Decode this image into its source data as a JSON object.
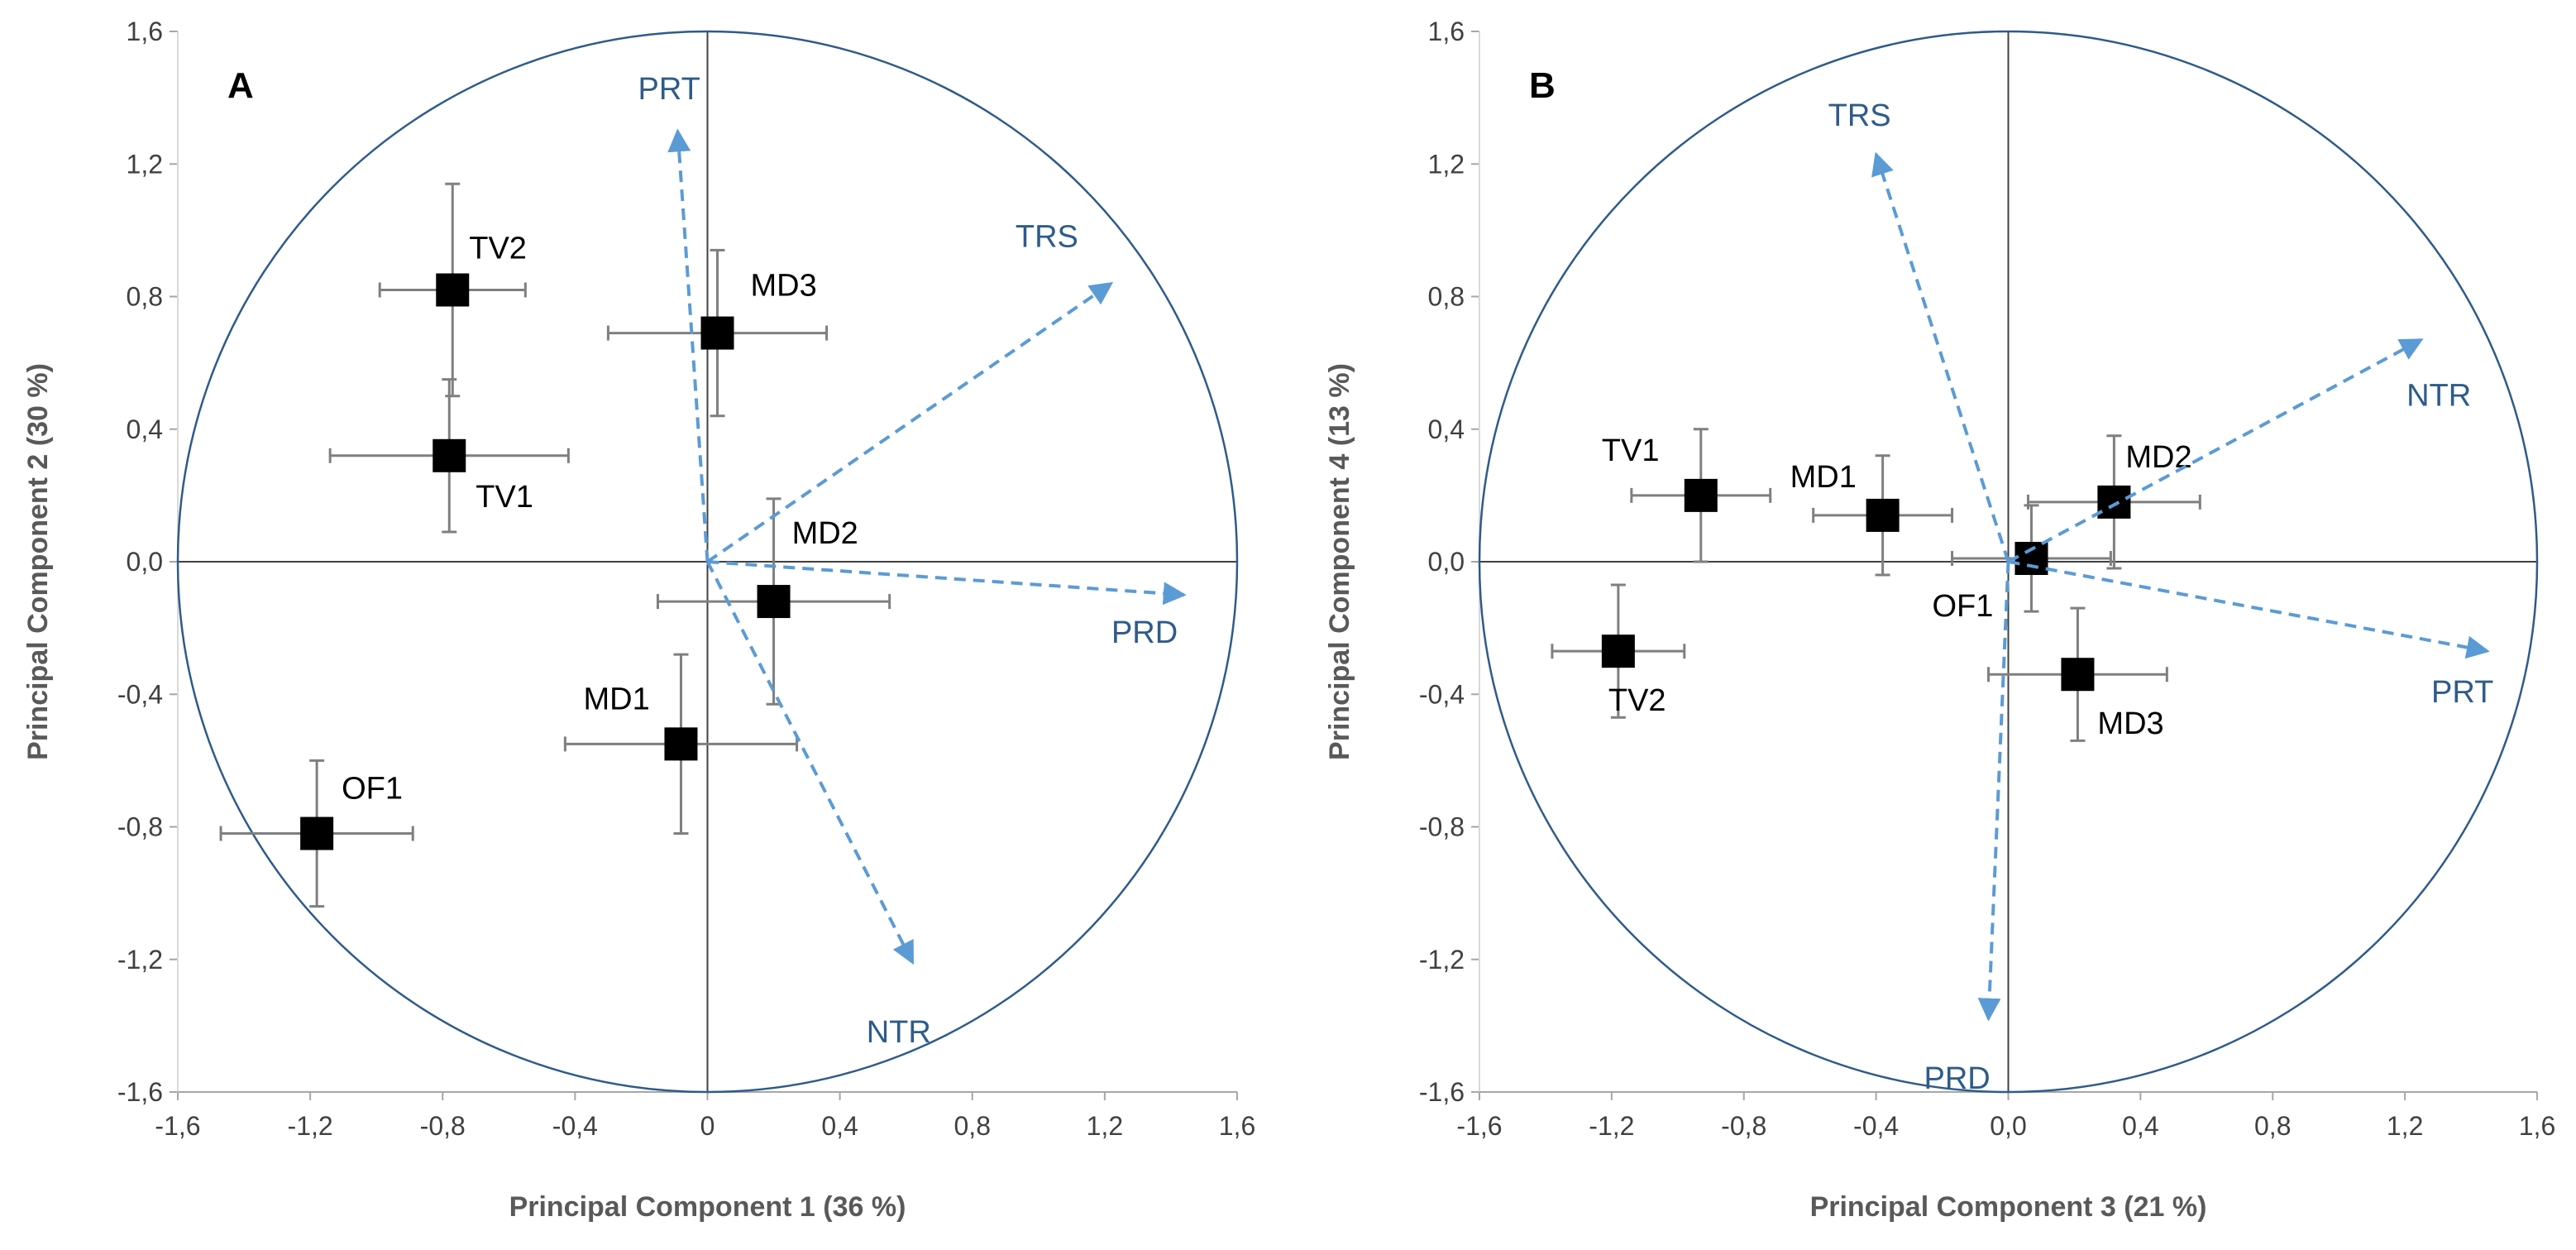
{
  "chart_data": [
    {
      "type": "scatter",
      "panel": "A",
      "xlabel": "Principal Component 1 (36 %)",
      "ylabel": "Principal Component 2 (30 %)",
      "xlim": [
        -1.6,
        1.6
      ],
      "ylim": [
        -1.6,
        1.6
      ],
      "xticks": [
        "-1,6",
        "-1,2",
        "-0,8",
        "-0,4",
        "0",
        "0,4",
        "0,8",
        "1,2",
        "1,6"
      ],
      "yticks": [
        "1,6",
        "1,2",
        "0,8",
        "0,4",
        "0,0",
        "-0,4",
        "-0,8",
        "-1,2",
        "-1,6"
      ],
      "circle_radius": 1.6,
      "points": [
        {
          "label": "TV2",
          "x": -0.77,
          "y": 0.82,
          "xerr": 0.22,
          "yerr": 0.32
        },
        {
          "label": "MD3",
          "x": 0.03,
          "y": 0.69,
          "xerr": 0.33,
          "yerr": 0.25
        },
        {
          "label": "TV1",
          "x": -0.78,
          "y": 0.32,
          "xerr": 0.36,
          "yerr": 0.23
        },
        {
          "label": "MD2",
          "x": 0.2,
          "y": -0.12,
          "xerr": 0.35,
          "yerr": 0.31
        },
        {
          "label": "MD1",
          "x": -0.08,
          "y": -0.55,
          "xerr": 0.35,
          "yerr": 0.27
        },
        {
          "label": "OF1",
          "x": -1.18,
          "y": -0.82,
          "xerr": 0.29,
          "yerr": 0.22
        }
      ],
      "vectors": [
        {
          "label": "PRT",
          "x": -0.09,
          "y": 1.3
        },
        {
          "label": "TRS",
          "x": 1.22,
          "y": 0.84
        },
        {
          "label": "PRD",
          "x": 1.44,
          "y": -0.1
        },
        {
          "label": "NTR",
          "x": 0.62,
          "y": -1.21
        }
      ]
    },
    {
      "type": "scatter",
      "panel": "B",
      "xlabel": "Principal Component 3 (21 %)",
      "ylabel": "Principal Component 4 (13 %)",
      "xlim": [
        -1.6,
        1.6
      ],
      "ylim": [
        -1.6,
        1.6
      ],
      "xticks": [
        "-1,6",
        "-1,2",
        "-0,8",
        "-0,4",
        "0,0",
        "0,4",
        "0,8",
        "1,2",
        "1,6"
      ],
      "yticks": [
        "1,6",
        "1,2",
        "0,8",
        "0,4",
        "0,0",
        "-0,4",
        "-0,8",
        "-1,2",
        "-1,6"
      ],
      "circle_radius": 1.6,
      "points": [
        {
          "label": "TV1",
          "x": -0.93,
          "y": 0.2,
          "xerr": 0.21,
          "yerr": 0.2
        },
        {
          "label": "MD1",
          "x": -0.38,
          "y": 0.14,
          "xerr": 0.21,
          "yerr": 0.18
        },
        {
          "label": "MD2",
          "x": 0.32,
          "y": 0.18,
          "xerr": 0.26,
          "yerr": 0.2
        },
        {
          "label": "OF1",
          "x": 0.07,
          "y": 0.01,
          "xerr": 0.24,
          "yerr": 0.16
        },
        {
          "label": "TV2",
          "x": -1.18,
          "y": -0.27,
          "xerr": 0.2,
          "yerr": 0.2
        },
        {
          "label": "MD3",
          "x": 0.21,
          "y": -0.34,
          "xerr": 0.27,
          "yerr": 0.2
        }
      ],
      "vectors": [
        {
          "label": "TRS",
          "x": -0.4,
          "y": 1.23
        },
        {
          "label": "NTR",
          "x": 1.25,
          "y": 0.67
        },
        {
          "label": "PRT",
          "x": 1.45,
          "y": -0.27
        },
        {
          "label": "PRD",
          "x": -0.06,
          "y": -1.38
        }
      ]
    }
  ],
  "colors": {
    "axis": "#404040",
    "grid_line": "#a6a6a6",
    "circle": "#2e5b8a",
    "vector": "#5b9bd5",
    "vector_label": "#2e5b8a",
    "marker": "#000000",
    "errorbar": "#7f7f7f"
  }
}
